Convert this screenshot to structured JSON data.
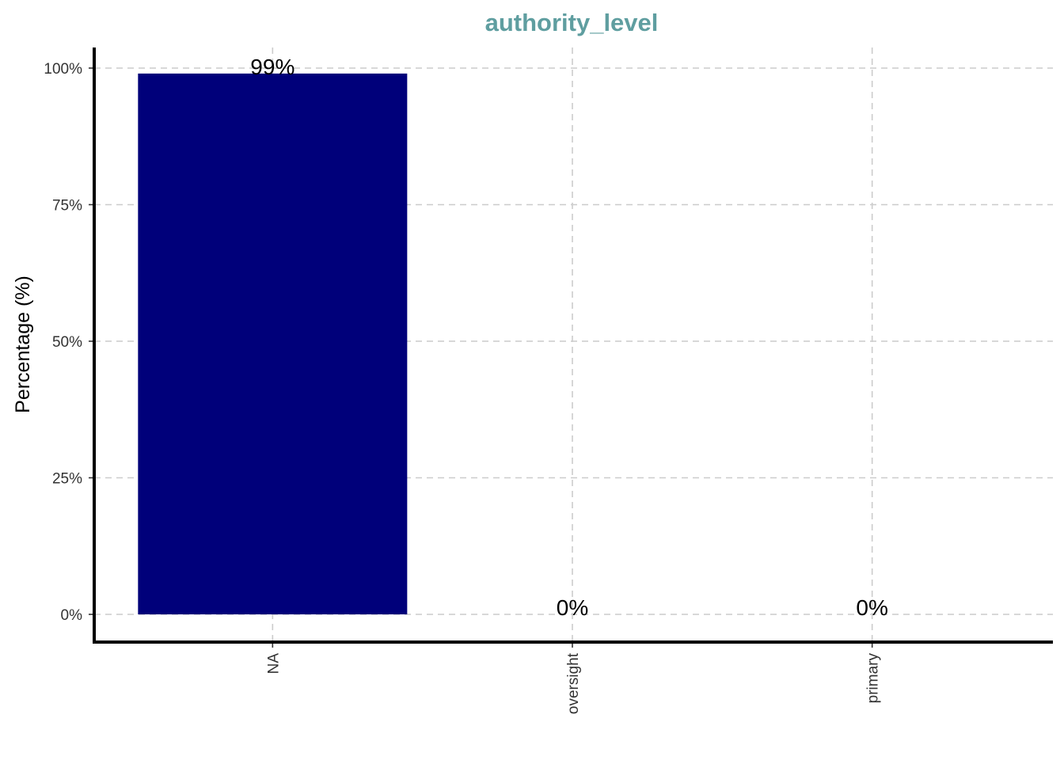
{
  "colors": {
    "bar": "#00007a",
    "title": "#5f9ea0",
    "grid": "#cccccc",
    "axis": "#000000"
  },
  "chart_data": {
    "type": "bar",
    "title": "authority_level",
    "xlabel": "",
    "ylabel": "Percentage (%)",
    "categories": [
      "NA",
      "oversight",
      "primary"
    ],
    "values": [
      99,
      0,
      0
    ],
    "data_labels": [
      "99%",
      "0%",
      "0%"
    ],
    "ylim": [
      -5,
      105
    ],
    "yticks": [
      0,
      25,
      50,
      75,
      100
    ],
    "ytick_labels": [
      "0%",
      "25%",
      "50%",
      "75%",
      "100%"
    ],
    "grid": true,
    "legend": "none"
  }
}
